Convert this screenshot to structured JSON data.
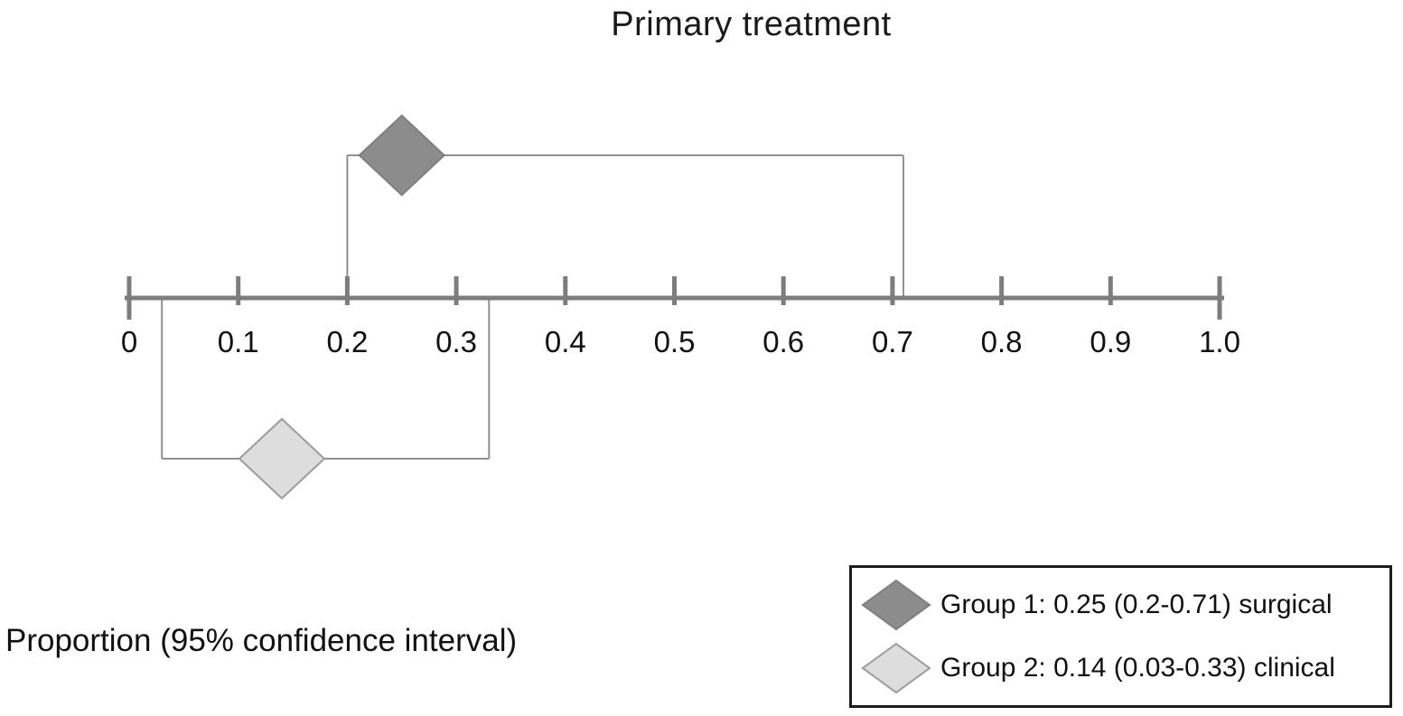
{
  "title": "Primary treatment",
  "axis_caption": "Proportion (95% confidence interval)",
  "chart_data": {
    "type": "forest",
    "title": "Primary treatment",
    "xlabel": "Proportion (95% confidence interval)",
    "grid": false,
    "axis": {
      "min": 0,
      "max": 1,
      "ticks": [
        0,
        0.1,
        0.2,
        0.3,
        0.4,
        0.5,
        0.6,
        0.7,
        0.8,
        0.9,
        1.0
      ],
      "tick_labels": [
        "0",
        "0.1",
        "0.2",
        "0.3",
        "0.4",
        "0.5",
        "0.6",
        "0.7",
        "0.8",
        "0.9",
        "1.0"
      ]
    },
    "series": [
      {
        "name": "Group 1",
        "estimate": 0.25,
        "ci_low": 0.2,
        "ci_high": 0.71,
        "treatment": "surgical",
        "placement": "above",
        "fill": "#8c8c8c",
        "stroke": "#7f7f7f"
      },
      {
        "name": "Group 2",
        "estimate": 0.14,
        "ci_low": 0.03,
        "ci_high": 0.33,
        "treatment": "clinical",
        "placement": "below",
        "fill": "#dddddd",
        "stroke": "#9c9c9c"
      }
    ],
    "legend": {
      "position": "bottom-right",
      "entries": [
        {
          "label": "Group 1: 0.25 (0.2-0.71) surgical",
          "fill": "#8c8c8c",
          "stroke": "#7f7f7f"
        },
        {
          "label": "Group 2: 0.14 (0.03-0.33) clinical",
          "fill": "#dddddd",
          "stroke": "#9c9c9c"
        }
      ]
    },
    "colors": {
      "axis": "#7d7d7d",
      "bracket": "#909090",
      "text": "#111111"
    }
  }
}
